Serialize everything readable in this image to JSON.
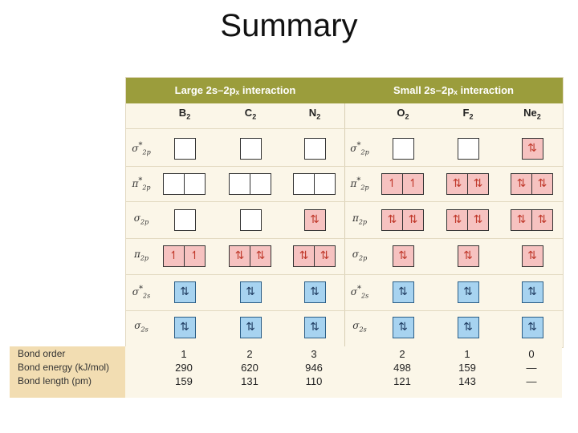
{
  "title": "Summary",
  "headers": {
    "large": "Large 2s–2pₓ interaction",
    "small": "Small 2s–2pₓ interaction"
  },
  "molecules": [
    {
      "base": "B",
      "sub": "2"
    },
    {
      "base": "C",
      "sub": "2"
    },
    {
      "base": "N",
      "sub": "2"
    },
    {
      "base": "O",
      "sub": "2"
    },
    {
      "base": "F",
      "sub": "2"
    },
    {
      "base": "Ne",
      "sub": "2"
    }
  ],
  "orbital_labels": {
    "large": [
      {
        "sym": "σ",
        "star": true,
        "sub": "2p"
      },
      {
        "sym": "π",
        "star": true,
        "sub": "2p"
      },
      {
        "sym": "σ",
        "star": false,
        "sub": "2p"
      },
      {
        "sym": "π",
        "star": false,
        "sub": "2p"
      },
      {
        "sym": "σ",
        "star": true,
        "sub": "2s"
      },
      {
        "sym": "σ",
        "star": false,
        "sub": "2s"
      }
    ],
    "small": [
      {
        "sym": "σ",
        "star": true,
        "sub": "2p"
      },
      {
        "sym": "π",
        "star": true,
        "sub": "2p"
      },
      {
        "sym": "π",
        "star": false,
        "sub": "2p"
      },
      {
        "sym": "σ",
        "star": false,
        "sub": "2p"
      },
      {
        "sym": "σ",
        "star": true,
        "sub": "2s"
      },
      {
        "sym": "σ",
        "star": false,
        "sub": "2s"
      }
    ]
  },
  "electron_filling": {
    "B2": [
      [
        ""
      ],
      [
        "",
        ""
      ],
      [
        ""
      ],
      [
        "↿",
        "↿"
      ],
      [
        "⇅"
      ],
      [
        "⇅"
      ]
    ],
    "C2": [
      [
        ""
      ],
      [
        "",
        ""
      ],
      [
        ""
      ],
      [
        "⇅",
        "⇅"
      ],
      [
        "⇅"
      ],
      [
        "⇅"
      ]
    ],
    "N2": [
      [
        ""
      ],
      [
        "",
        ""
      ],
      [
        "⇅"
      ],
      [
        "⇅",
        "⇅"
      ],
      [
        "⇅"
      ],
      [
        "⇅"
      ]
    ],
    "O2": [
      [
        ""
      ],
      [
        "↿",
        "↿"
      ],
      [
        "⇅",
        "⇅"
      ],
      [
        "⇅"
      ],
      [
        "⇅"
      ],
      [
        "⇅"
      ]
    ],
    "F2": [
      [
        ""
      ],
      [
        "⇅",
        "⇅"
      ],
      [
        "⇅",
        "⇅"
      ],
      [
        "⇅"
      ],
      [
        "⇅"
      ],
      [
        "⇅"
      ]
    ],
    "Ne2": [
      [
        "⇅"
      ],
      [
        "⇅",
        "⇅"
      ],
      [
        "⇅",
        "⇅"
      ],
      [
        "⇅"
      ],
      [
        "⇅"
      ],
      [
        "⇅"
      ]
    ]
  },
  "colors": {
    "header": "#9b9d3c",
    "filled_2p": "#f6c2c0",
    "filled_2s": "#a7d3f0",
    "empty": "#ffffff",
    "table_bg": "#fbf6e8",
    "label_bg": "#f2ddb2"
  },
  "properties": {
    "labels": [
      "Bond order",
      "Bond energy (kJ/mol)",
      "Bond length (pm)"
    ],
    "bond_order": [
      "1",
      "2",
      "3",
      "2",
      "1",
      "0"
    ],
    "bond_energy": [
      "290",
      "620",
      "946",
      "498",
      "159",
      "—"
    ],
    "bond_length": [
      "159",
      "131",
      "110",
      "121",
      "143",
      "—"
    ]
  }
}
